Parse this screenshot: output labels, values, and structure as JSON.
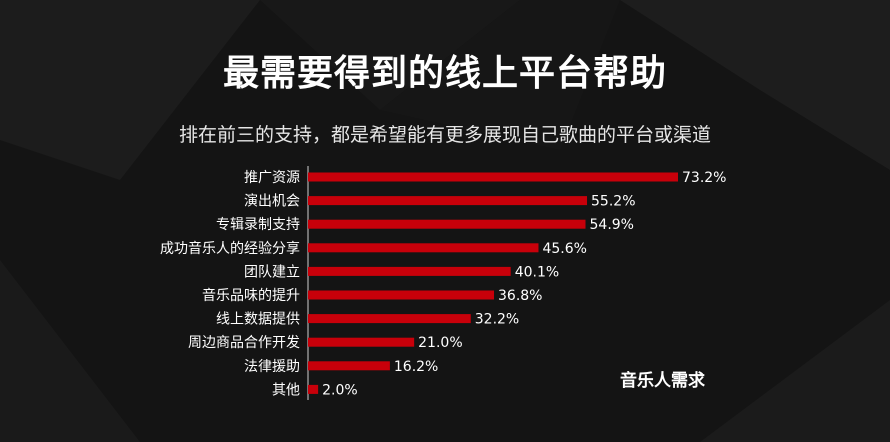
{
  "colors": {
    "background": "#141414",
    "bar": "#c8000a",
    "text": "#ffffff"
  },
  "title": "最需要得到的线上平台帮助",
  "subtitle": "排在前三的支持，都是希望能有更多展现自己歌曲的平台或渠道",
  "note": "音乐人需求",
  "chart_data": {
    "type": "bar",
    "orientation": "horizontal",
    "title": "最需要得到的线上平台帮助",
    "subtitle": "排在前三的支持，都是希望能有更多展现自己歌曲的平台或渠道",
    "categories": [
      "推广资源",
      "演出机会",
      "专辑录制支持",
      "成功音乐人的经验分享",
      "团队建立",
      "音乐品味的提升",
      "线上数据提供",
      "周边商品合作开发",
      "法律援助",
      "其他"
    ],
    "values": [
      73.2,
      55.2,
      54.9,
      45.6,
      40.1,
      36.8,
      32.2,
      21.0,
      16.2,
      2.0
    ],
    "value_labels": [
      "73.2%",
      "55.2%",
      "54.9%",
      "45.6%",
      "40.1%",
      "36.8%",
      "32.2%",
      "21.0%",
      "16.2%",
      "2.0%"
    ],
    "unit": "%",
    "xlim": [
      0,
      100
    ],
    "grid": false,
    "annotation": "音乐人需求"
  }
}
